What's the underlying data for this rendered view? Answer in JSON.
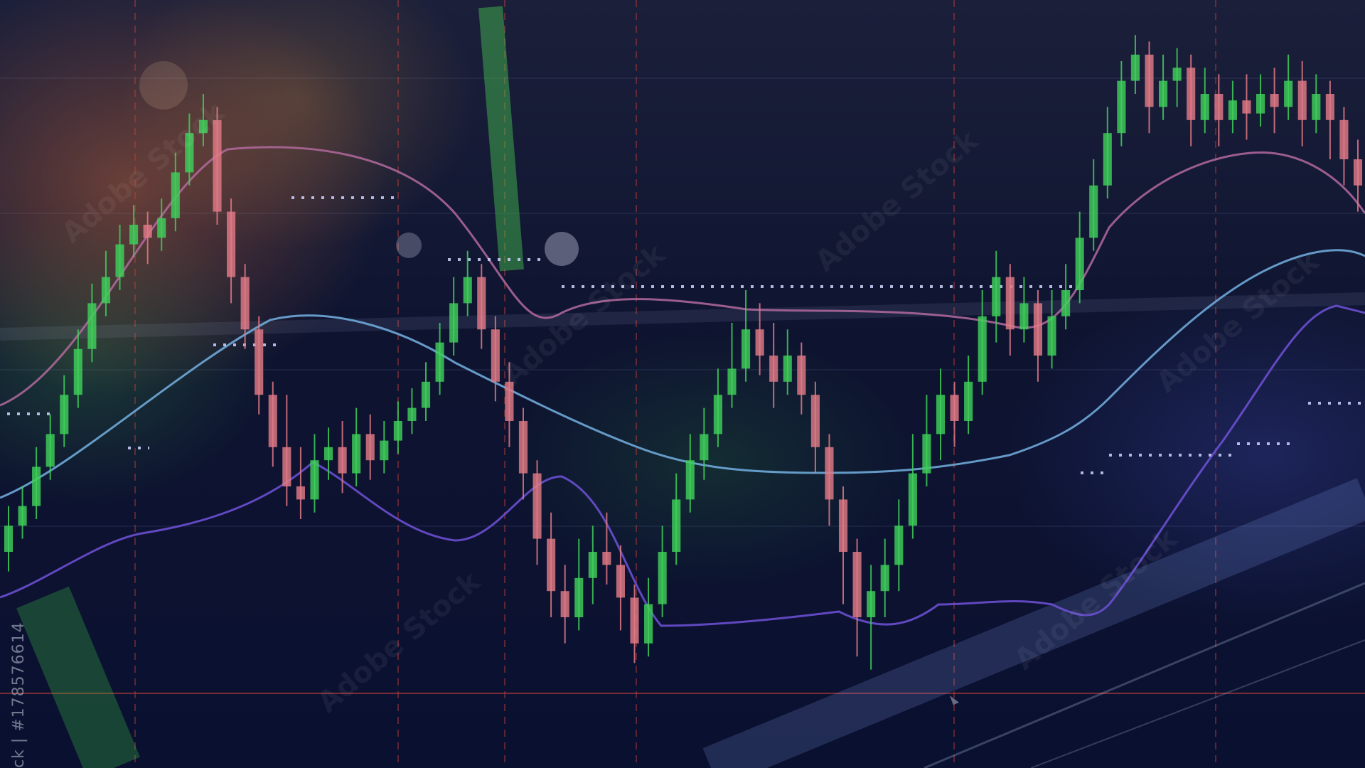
{
  "photo": {
    "subject": "stock-market-candlestick-chart-background",
    "stock_id_text": "ck | #178576614",
    "watermark_text": "Adobe Stock",
    "colors": {
      "background": "#0b1026",
      "bull_candle": "#3fcf5a",
      "bear_candle": "#e07a86",
      "band_upper": "#b36a9e",
      "band_lower": "#6a4fd0",
      "moving_average": "#6fa8d8",
      "dotted_level": "#cfd4ff",
      "grid_red": "#c0403a"
    },
    "icons": [
      "mouse-pointer-icon"
    ]
  },
  "chart_data": {
    "type": "candlestick",
    "title": "",
    "xlabel": "",
    "ylabel": "",
    "grid": true,
    "candles": [
      {
        "o": 20,
        "c": 24,
        "h": 27,
        "l": 17,
        "up": true
      },
      {
        "o": 24,
        "c": 27,
        "h": 30,
        "l": 22,
        "up": true
      },
      {
        "o": 27,
        "c": 33,
        "h": 36,
        "l": 25,
        "up": true
      },
      {
        "o": 33,
        "c": 38,
        "h": 41,
        "l": 31,
        "up": true
      },
      {
        "o": 38,
        "c": 44,
        "h": 47,
        "l": 36,
        "up": true
      },
      {
        "o": 44,
        "c": 51,
        "h": 54,
        "l": 42,
        "up": true
      },
      {
        "o": 51,
        "c": 58,
        "h": 61,
        "l": 49,
        "up": true
      },
      {
        "o": 58,
        "c": 62,
        "h": 66,
        "l": 56,
        "up": true
      },
      {
        "o": 62,
        "c": 67,
        "h": 70,
        "l": 60,
        "up": true
      },
      {
        "o": 67,
        "c": 70,
        "h": 73,
        "l": 65,
        "up": true
      },
      {
        "o": 70,
        "c": 68,
        "h": 72,
        "l": 64,
        "up": false
      },
      {
        "o": 68,
        "c": 71,
        "h": 74,
        "l": 66,
        "up": true
      },
      {
        "o": 71,
        "c": 78,
        "h": 81,
        "l": 69,
        "up": true
      },
      {
        "o": 78,
        "c": 84,
        "h": 87,
        "l": 76,
        "up": true
      },
      {
        "o": 84,
        "c": 86,
        "h": 90,
        "l": 82,
        "up": true
      },
      {
        "o": 86,
        "c": 72,
        "h": 88,
        "l": 70,
        "up": false
      },
      {
        "o": 72,
        "c": 62,
        "h": 74,
        "l": 58,
        "up": false
      },
      {
        "o": 62,
        "c": 54,
        "h": 64,
        "l": 51,
        "up": false
      },
      {
        "o": 54,
        "c": 44,
        "h": 56,
        "l": 41,
        "up": false
      },
      {
        "o": 44,
        "c": 36,
        "h": 46,
        "l": 33,
        "up": false
      },
      {
        "o": 36,
        "c": 30,
        "h": 44,
        "l": 27,
        "up": false
      },
      {
        "o": 30,
        "c": 28,
        "h": 36,
        "l": 25,
        "up": false
      },
      {
        "o": 28,
        "c": 34,
        "h": 38,
        "l": 26,
        "up": true
      },
      {
        "o": 34,
        "c": 36,
        "h": 39,
        "l": 31,
        "up": true
      },
      {
        "o": 36,
        "c": 32,
        "h": 40,
        "l": 29,
        "up": false
      },
      {
        "o": 32,
        "c": 38,
        "h": 42,
        "l": 30,
        "up": true
      },
      {
        "o": 38,
        "c": 34,
        "h": 41,
        "l": 31,
        "up": false
      },
      {
        "o": 34,
        "c": 37,
        "h": 40,
        "l": 32,
        "up": true
      },
      {
        "o": 37,
        "c": 40,
        "h": 43,
        "l": 35,
        "up": true
      },
      {
        "o": 40,
        "c": 42,
        "h": 45,
        "l": 38,
        "up": true
      },
      {
        "o": 42,
        "c": 46,
        "h": 49,
        "l": 40,
        "up": true
      },
      {
        "o": 46,
        "c": 52,
        "h": 55,
        "l": 44,
        "up": true
      },
      {
        "o": 52,
        "c": 58,
        "h": 62,
        "l": 50,
        "up": true
      },
      {
        "o": 58,
        "c": 62,
        "h": 66,
        "l": 56,
        "up": true
      },
      {
        "o": 62,
        "c": 54,
        "h": 64,
        "l": 51,
        "up": false
      },
      {
        "o": 54,
        "c": 46,
        "h": 56,
        "l": 43,
        "up": false
      },
      {
        "o": 46,
        "c": 40,
        "h": 49,
        "l": 36,
        "up": false
      },
      {
        "o": 40,
        "c": 32,
        "h": 42,
        "l": 28,
        "up": false
      },
      {
        "o": 32,
        "c": 22,
        "h": 34,
        "l": 18,
        "up": false
      },
      {
        "o": 22,
        "c": 14,
        "h": 26,
        "l": 10,
        "up": false
      },
      {
        "o": 14,
        "c": 10,
        "h": 18,
        "l": 6,
        "up": false
      },
      {
        "o": 10,
        "c": 16,
        "h": 22,
        "l": 8,
        "up": true
      },
      {
        "o": 16,
        "c": 20,
        "h": 24,
        "l": 12,
        "up": true
      },
      {
        "o": 20,
        "c": 18,
        "h": 26,
        "l": 15,
        "up": false
      },
      {
        "o": 18,
        "c": 13,
        "h": 21,
        "l": 8,
        "up": false
      },
      {
        "o": 13,
        "c": 6,
        "h": 15,
        "l": 3,
        "up": false
      },
      {
        "o": 6,
        "c": 12,
        "h": 16,
        "l": 4,
        "up": true
      },
      {
        "o": 12,
        "c": 20,
        "h": 24,
        "l": 10,
        "up": true
      },
      {
        "o": 20,
        "c": 28,
        "h": 32,
        "l": 18,
        "up": true
      },
      {
        "o": 28,
        "c": 34,
        "h": 38,
        "l": 26,
        "up": true
      },
      {
        "o": 34,
        "c": 38,
        "h": 42,
        "l": 31,
        "up": true
      },
      {
        "o": 38,
        "c": 44,
        "h": 48,
        "l": 36,
        "up": true
      },
      {
        "o": 44,
        "c": 48,
        "h": 55,
        "l": 42,
        "up": true
      },
      {
        "o": 48,
        "c": 54,
        "h": 60,
        "l": 46,
        "up": true
      },
      {
        "o": 54,
        "c": 50,
        "h": 58,
        "l": 47,
        "up": false
      },
      {
        "o": 50,
        "c": 46,
        "h": 55,
        "l": 42,
        "up": false
      },
      {
        "o": 46,
        "c": 50,
        "h": 54,
        "l": 44,
        "up": true
      },
      {
        "o": 50,
        "c": 44,
        "h": 52,
        "l": 41,
        "up": false
      },
      {
        "o": 44,
        "c": 36,
        "h": 46,
        "l": 32,
        "up": false
      },
      {
        "o": 36,
        "c": 28,
        "h": 38,
        "l": 24,
        "up": false
      },
      {
        "o": 28,
        "c": 20,
        "h": 30,
        "l": 12,
        "up": false
      },
      {
        "o": 20,
        "c": 10,
        "h": 22,
        "l": 4,
        "up": false
      },
      {
        "o": 10,
        "c": 14,
        "h": 18,
        "l": 2,
        "up": true
      },
      {
        "o": 14,
        "c": 18,
        "h": 22,
        "l": 10,
        "up": true
      },
      {
        "o": 18,
        "c": 24,
        "h": 28,
        "l": 14,
        "up": true
      },
      {
        "o": 24,
        "c": 32,
        "h": 38,
        "l": 22,
        "up": true
      },
      {
        "o": 32,
        "c": 38,
        "h": 44,
        "l": 30,
        "up": true
      },
      {
        "o": 38,
        "c": 44,
        "h": 48,
        "l": 34,
        "up": true
      },
      {
        "o": 44,
        "c": 40,
        "h": 46,
        "l": 36,
        "up": false
      },
      {
        "o": 40,
        "c": 46,
        "h": 50,
        "l": 38,
        "up": true
      },
      {
        "o": 46,
        "c": 56,
        "h": 60,
        "l": 44,
        "up": true
      },
      {
        "o": 56,
        "c": 62,
        "h": 66,
        "l": 52,
        "up": true
      },
      {
        "o": 62,
        "c": 54,
        "h": 64,
        "l": 50,
        "up": false
      },
      {
        "o": 54,
        "c": 58,
        "h": 62,
        "l": 52,
        "up": true
      },
      {
        "o": 58,
        "c": 50,
        "h": 60,
        "l": 46,
        "up": false
      },
      {
        "o": 50,
        "c": 56,
        "h": 60,
        "l": 48,
        "up": true
      },
      {
        "o": 56,
        "c": 60,
        "h": 64,
        "l": 54,
        "up": true
      },
      {
        "o": 60,
        "c": 68,
        "h": 72,
        "l": 58,
        "up": true
      },
      {
        "o": 68,
        "c": 76,
        "h": 80,
        "l": 66,
        "up": true
      },
      {
        "o": 76,
        "c": 84,
        "h": 88,
        "l": 74,
        "up": true
      },
      {
        "o": 84,
        "c": 92,
        "h": 95,
        "l": 82,
        "up": true
      },
      {
        "o": 92,
        "c": 96,
        "h": 99,
        "l": 90,
        "up": true
      },
      {
        "o": 96,
        "c": 88,
        "h": 98,
        "l": 84,
        "up": false
      },
      {
        "o": 88,
        "c": 92,
        "h": 96,
        "l": 86,
        "up": true
      },
      {
        "o": 92,
        "c": 94,
        "h": 97,
        "l": 88,
        "up": true
      },
      {
        "o": 94,
        "c": 86,
        "h": 96,
        "l": 82,
        "up": false
      },
      {
        "o": 86,
        "c": 90,
        "h": 94,
        "l": 84,
        "up": true
      },
      {
        "o": 90,
        "c": 86,
        "h": 93,
        "l": 82,
        "up": false
      },
      {
        "o": 86,
        "c": 89,
        "h": 92,
        "l": 84,
        "up": true
      },
      {
        "o": 89,
        "c": 87,
        "h": 93,
        "l": 83,
        "up": false
      },
      {
        "o": 87,
        "c": 90,
        "h": 93,
        "l": 85,
        "up": true
      },
      {
        "o": 90,
        "c": 88,
        "h": 94,
        "l": 84,
        "up": false
      },
      {
        "o": 88,
        "c": 92,
        "h": 96,
        "l": 86,
        "up": true
      },
      {
        "o": 92,
        "c": 86,
        "h": 95,
        "l": 82,
        "up": false
      },
      {
        "o": 86,
        "c": 90,
        "h": 93,
        "l": 84,
        "up": true
      },
      {
        "o": 90,
        "c": 86,
        "h": 92,
        "l": 80,
        "up": false
      },
      {
        "o": 86,
        "c": 80,
        "h": 88,
        "l": 76,
        "up": false
      },
      {
        "o": 80,
        "c": 76,
        "h": 83,
        "l": 72,
        "up": false
      }
    ]
  }
}
